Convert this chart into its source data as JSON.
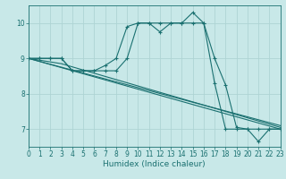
{
  "xlabel": "Humidex (Indice chaleur)",
  "xlim": [
    0,
    23
  ],
  "ylim": [
    6.5,
    10.5
  ],
  "yticks": [
    7,
    8,
    9,
    10
  ],
  "xticks": [
    0,
    1,
    2,
    3,
    4,
    5,
    6,
    7,
    8,
    9,
    10,
    11,
    12,
    13,
    14,
    15,
    16,
    17,
    18,
    19,
    20,
    21,
    22,
    23
  ],
  "bg_color": "#c8e8e8",
  "line_color": "#1a7070",
  "grid_color": "#aed4d4",
  "lines": [
    {
      "x": [
        0,
        1,
        2,
        3,
        4,
        5,
        6,
        7,
        8,
        9,
        10,
        11,
        12,
        13,
        14,
        15,
        16,
        17,
        18,
        19,
        20,
        21,
        22,
        23
      ],
      "y": [
        9.0,
        9.0,
        9.0,
        9.0,
        8.65,
        8.65,
        8.65,
        8.8,
        9.0,
        9.9,
        10.0,
        10.0,
        9.75,
        10.0,
        10.0,
        10.3,
        10.0,
        9.0,
        8.25,
        7.05,
        7.0,
        6.65,
        7.0,
        7.0
      ],
      "marker": true
    },
    {
      "x": [
        0,
        1,
        2,
        3,
        4,
        5,
        6,
        7,
        8,
        9,
        10,
        11,
        12,
        13,
        14,
        15,
        16,
        17,
        18,
        19,
        20,
        21,
        22,
        23
      ],
      "y": [
        9.0,
        9.0,
        9.0,
        9.0,
        8.65,
        8.65,
        8.65,
        8.65,
        8.65,
        9.0,
        10.0,
        10.0,
        10.0,
        10.0,
        10.0,
        10.0,
        10.0,
        8.3,
        7.0,
        7.0,
        7.0,
        7.0,
        7.0,
        7.0
      ],
      "marker": true
    },
    {
      "x": [
        0,
        23
      ],
      "y": [
        9.0,
        7.0
      ],
      "marker": false
    },
    {
      "x": [
        0,
        3,
        23
      ],
      "y": [
        9.0,
        8.85,
        7.05
      ],
      "marker": false
    },
    {
      "x": [
        0,
        3,
        23
      ],
      "y": [
        9.0,
        8.75,
        7.1
      ],
      "marker": false
    }
  ]
}
